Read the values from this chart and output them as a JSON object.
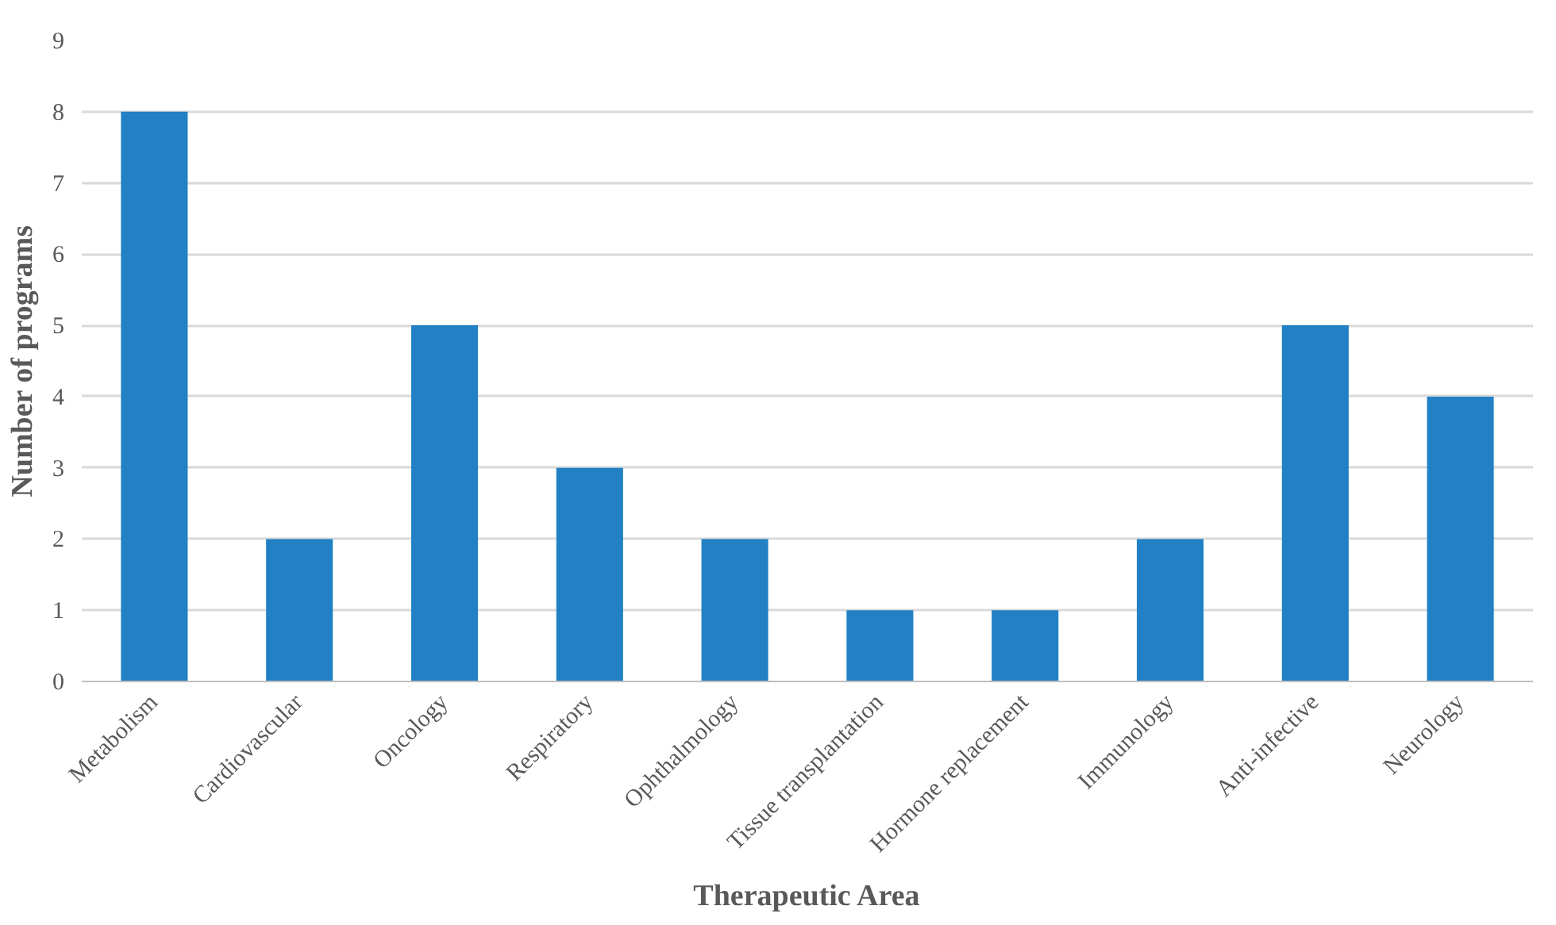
{
  "chart_data": {
    "type": "bar",
    "xlabel": "Therapeutic Area",
    "ylabel": "Number of programs",
    "categories": [
      "Metabolism",
      "Cardiovascular",
      "Oncology",
      "Respiratory",
      "Ophthalmology",
      "Tissue transplantation",
      "Hormone replacement",
      "Immunology",
      "Anti-infective",
      "Neurology"
    ],
    "values": [
      8,
      2,
      5,
      3,
      2,
      1,
      1,
      2,
      5,
      4
    ],
    "color": "#2281c4",
    "ylim": [
      0,
      9
    ],
    "yticks": [
      0,
      1,
      2,
      3,
      4,
      5,
      6,
      7,
      8,
      9
    ],
    "grid": "y"
  }
}
